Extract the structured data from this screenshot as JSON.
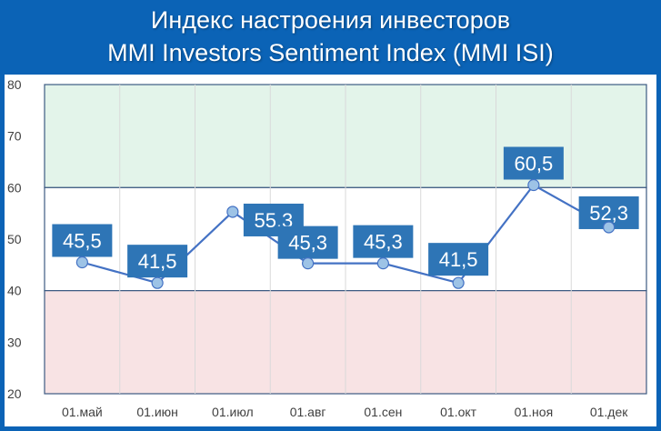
{
  "chart_title_line1": "Индекс настроения инвесторов",
  "chart_title_line2": "MMI Investors Sentiment Index (MMI ISI)",
  "chart_data": {
    "type": "line",
    "title": "Индекс настроения инвесторов MMI Investors Sentiment Index (MMI ISI)",
    "categories": [
      "01.май",
      "01.июн",
      "01.июл",
      "01.авг",
      "01.сен",
      "01.окт",
      "01.ноя",
      "01.дек"
    ],
    "values": [
      45.5,
      41.5,
      55.3,
      45.3,
      45.3,
      41.5,
      60.5,
      52.3
    ],
    "data_labels": [
      "45,5",
      "41,5",
      "55,3",
      "45,3",
      "45,3",
      "41,5",
      "60,5",
      "52,3"
    ],
    "ylim": [
      20,
      80
    ],
    "yticks": [
      20,
      30,
      40,
      50,
      60,
      70,
      80
    ],
    "ytick_labels": [
      "20",
      "30",
      "40",
      "50",
      "60",
      "70",
      "80"
    ],
    "grid": true,
    "bands": [
      {
        "from": 60,
        "to": 80,
        "color": "#e3f4ea"
      },
      {
        "from": 40,
        "to": 60,
        "color": "#ffffff"
      },
      {
        "from": 20,
        "to": 40,
        "color": "#f8e3e4"
      }
    ],
    "colors": {
      "line": "#4472c4",
      "marker_fill": "#9dc3e6",
      "label_box": "#2e75b6",
      "background": "#0b63b6",
      "band_border": "#3c5a82"
    }
  }
}
